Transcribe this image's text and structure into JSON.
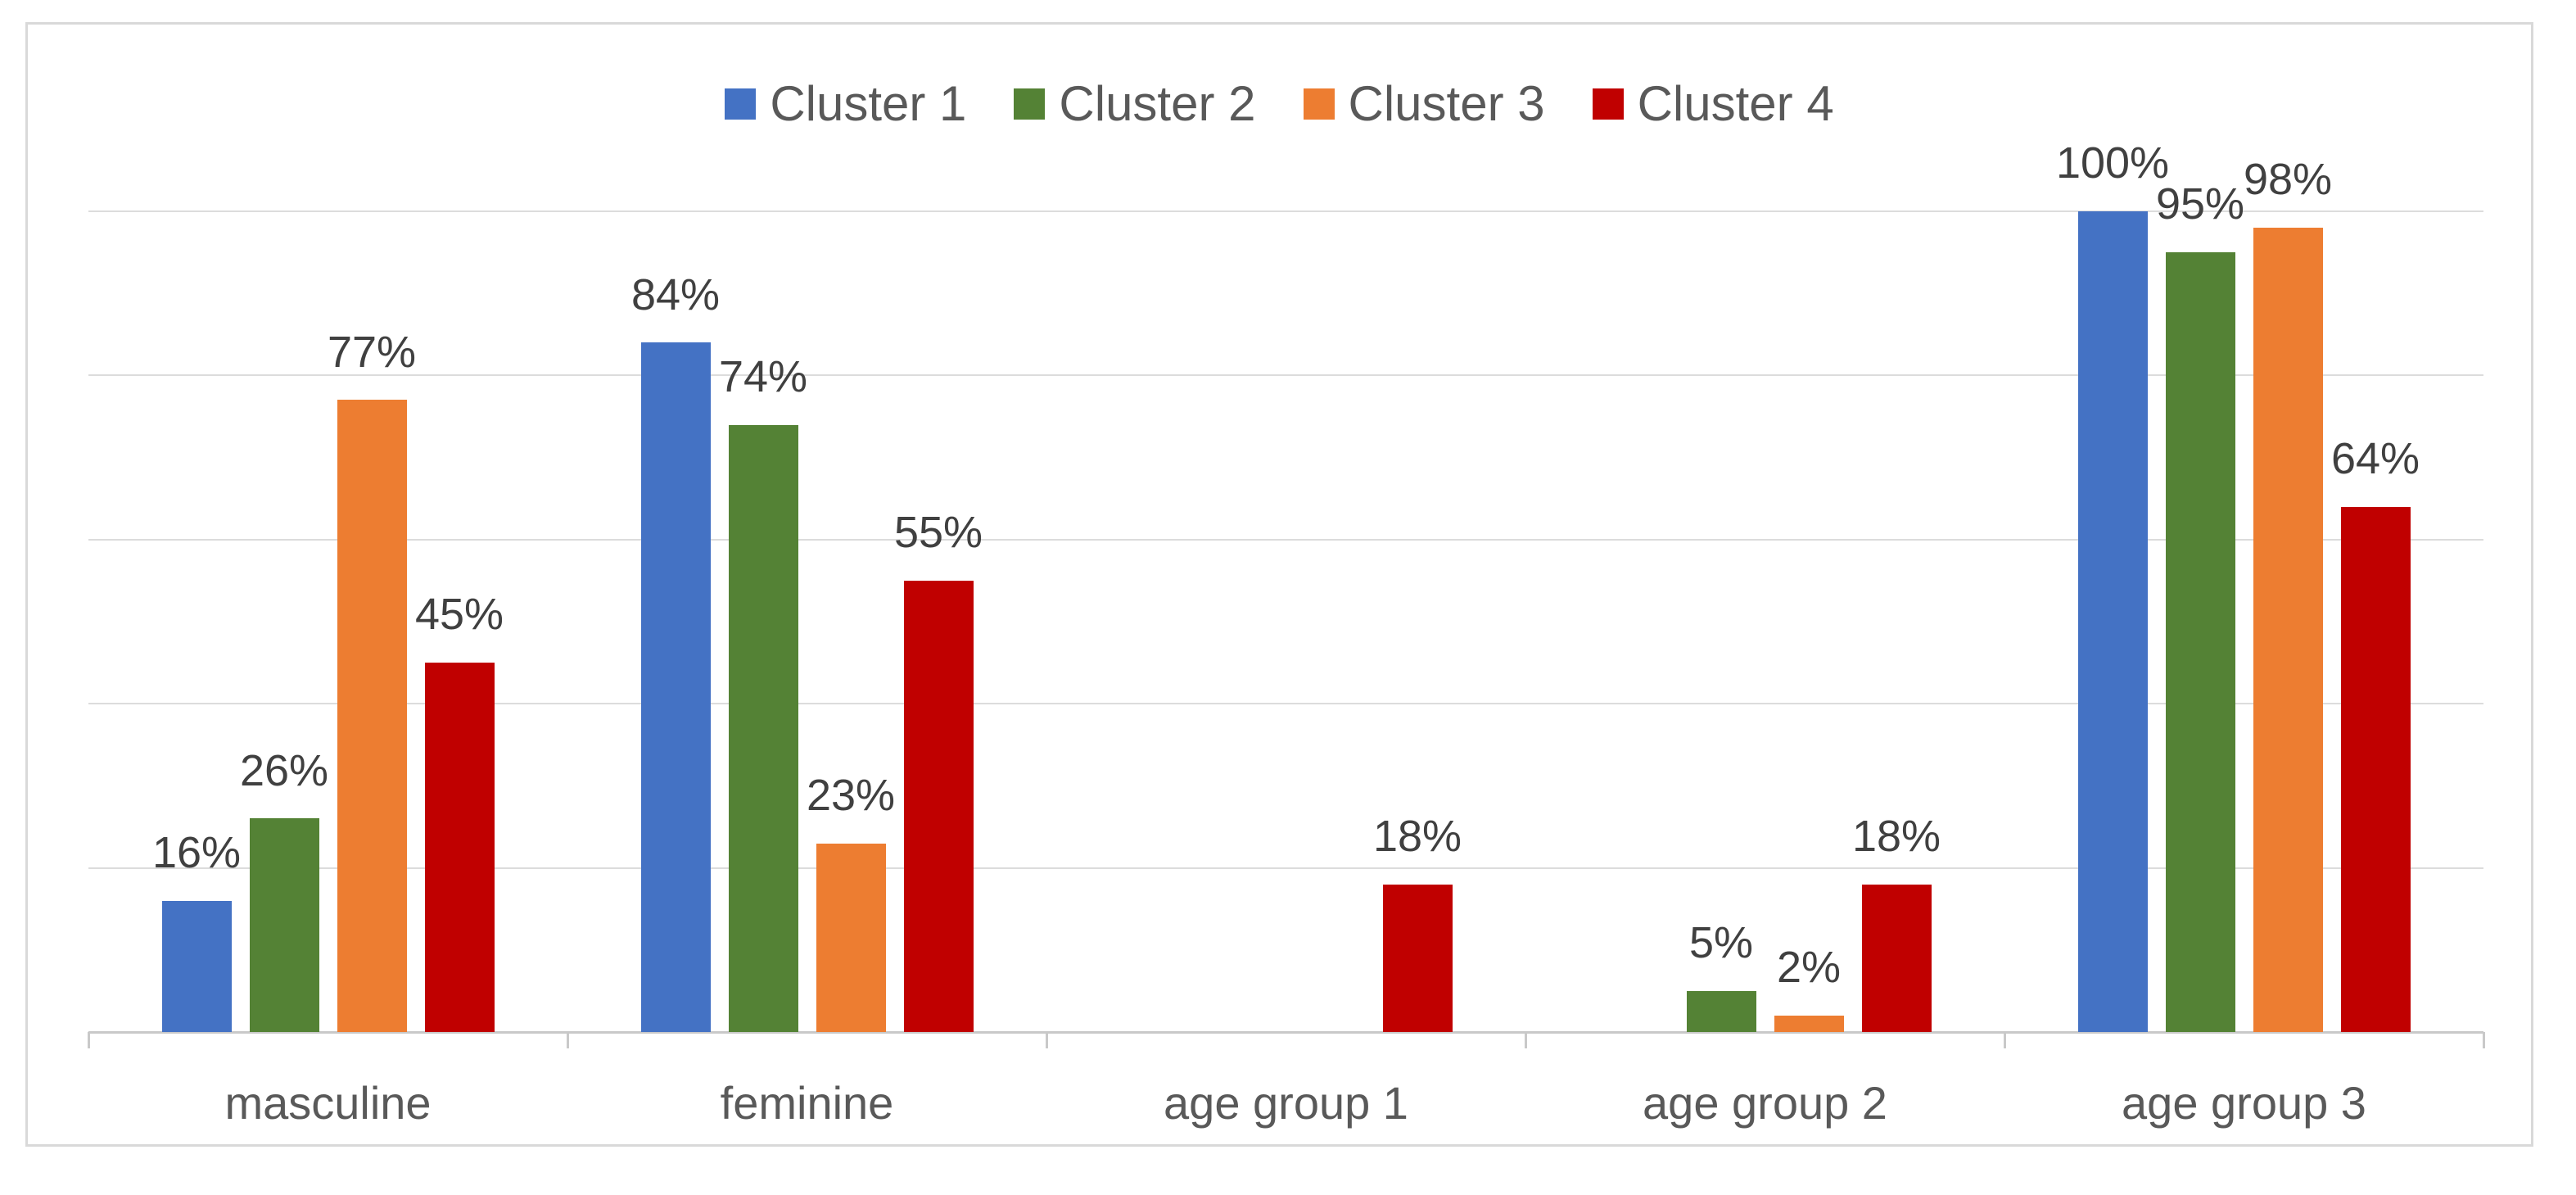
{
  "chart_data": {
    "type": "bar",
    "title": "",
    "categories": [
      "masculine",
      "feminine",
      "age group 1",
      "age group 2",
      "age group 3"
    ],
    "series": [
      {
        "name": "Cluster 1",
        "color": "#4472C4",
        "values": [
          16,
          84,
          0,
          0,
          100
        ]
      },
      {
        "name": "Cluster 2",
        "color": "#548235",
        "values": [
          26,
          74,
          0,
          5,
          95
        ]
      },
      {
        "name": "Cluster 3",
        "color": "#ED7D31",
        "values": [
          77,
          23,
          0,
          2,
          98
        ]
      },
      {
        "name": "Cluster 4",
        "color": "#C00000",
        "values": [
          45,
          55,
          18,
          18,
          64
        ]
      }
    ],
    "data_labels": {
      "visible": true,
      "suffix": "%",
      "hide_zero_values": true,
      "labels": {
        "masculine": [
          "16%",
          "26%",
          "77%",
          "45%"
        ],
        "feminine": [
          "84%",
          "74%",
          "23%",
          "55%"
        ],
        "age group 1": [
          "",
          "",
          "",
          "18%"
        ],
        "age group 2": [
          "",
          "5%",
          "2%",
          "18%"
        ],
        "age group 3": [
          "100%",
          "95%",
          "98%",
          "64%"
        ]
      }
    },
    "legend_position": "top",
    "legend_entries": [
      "Cluster 1",
      "Cluster 2",
      "Cluster 3",
      "Cluster 4"
    ],
    "ylim": [
      0,
      100
    ],
    "gridline_interval": 20,
    "grid": true,
    "y_axis_tick_labels_visible": false,
    "xlabel": "",
    "ylabel": ""
  },
  "style": {
    "background": "#FFFFFF",
    "frame_border_color": "#D9D9D9",
    "gridline_color": "#DCDCDC",
    "axis_line_color": "#C9C9C9",
    "data_label_color": "#404040",
    "category_label_color": "#595959",
    "legend_text_color": "#595959"
  }
}
